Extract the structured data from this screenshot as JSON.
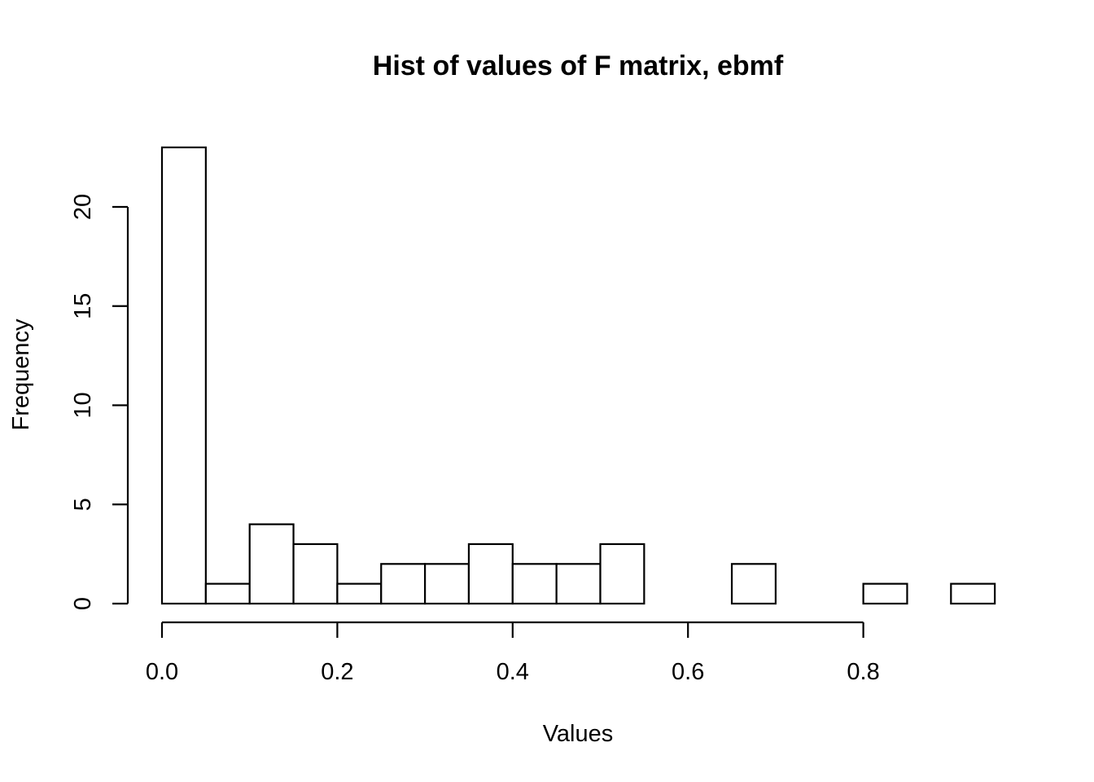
{
  "chart_data": {
    "type": "bar",
    "title": "Hist of values of F matrix, ebmf",
    "xlabel": "Values",
    "ylabel": "Frequency",
    "bin_edges": [
      0.0,
      0.05,
      0.1,
      0.15,
      0.2,
      0.25,
      0.3,
      0.35,
      0.4,
      0.45,
      0.5,
      0.55,
      0.6,
      0.65,
      0.7,
      0.75,
      0.8,
      0.85,
      0.9,
      0.95
    ],
    "values": [
      23,
      1,
      4,
      3,
      1,
      2,
      2,
      3,
      2,
      2,
      3,
      0,
      0,
      2,
      0,
      0,
      1,
      0,
      1
    ],
    "xlim": [
      0.0,
      0.95
    ],
    "ylim": [
      0,
      23
    ],
    "x_ticks": [
      0.0,
      0.2,
      0.4,
      0.6,
      0.8
    ],
    "x_tick_labels": [
      "0.0",
      "0.2",
      "0.4",
      "0.6",
      "0.8"
    ],
    "y_ticks": [
      0,
      5,
      10,
      15,
      20
    ],
    "y_tick_labels": [
      "0",
      "5",
      "10",
      "15",
      "20"
    ],
    "grid": false,
    "bar_fill": "#ffffff",
    "bar_stroke": "#000000"
  }
}
